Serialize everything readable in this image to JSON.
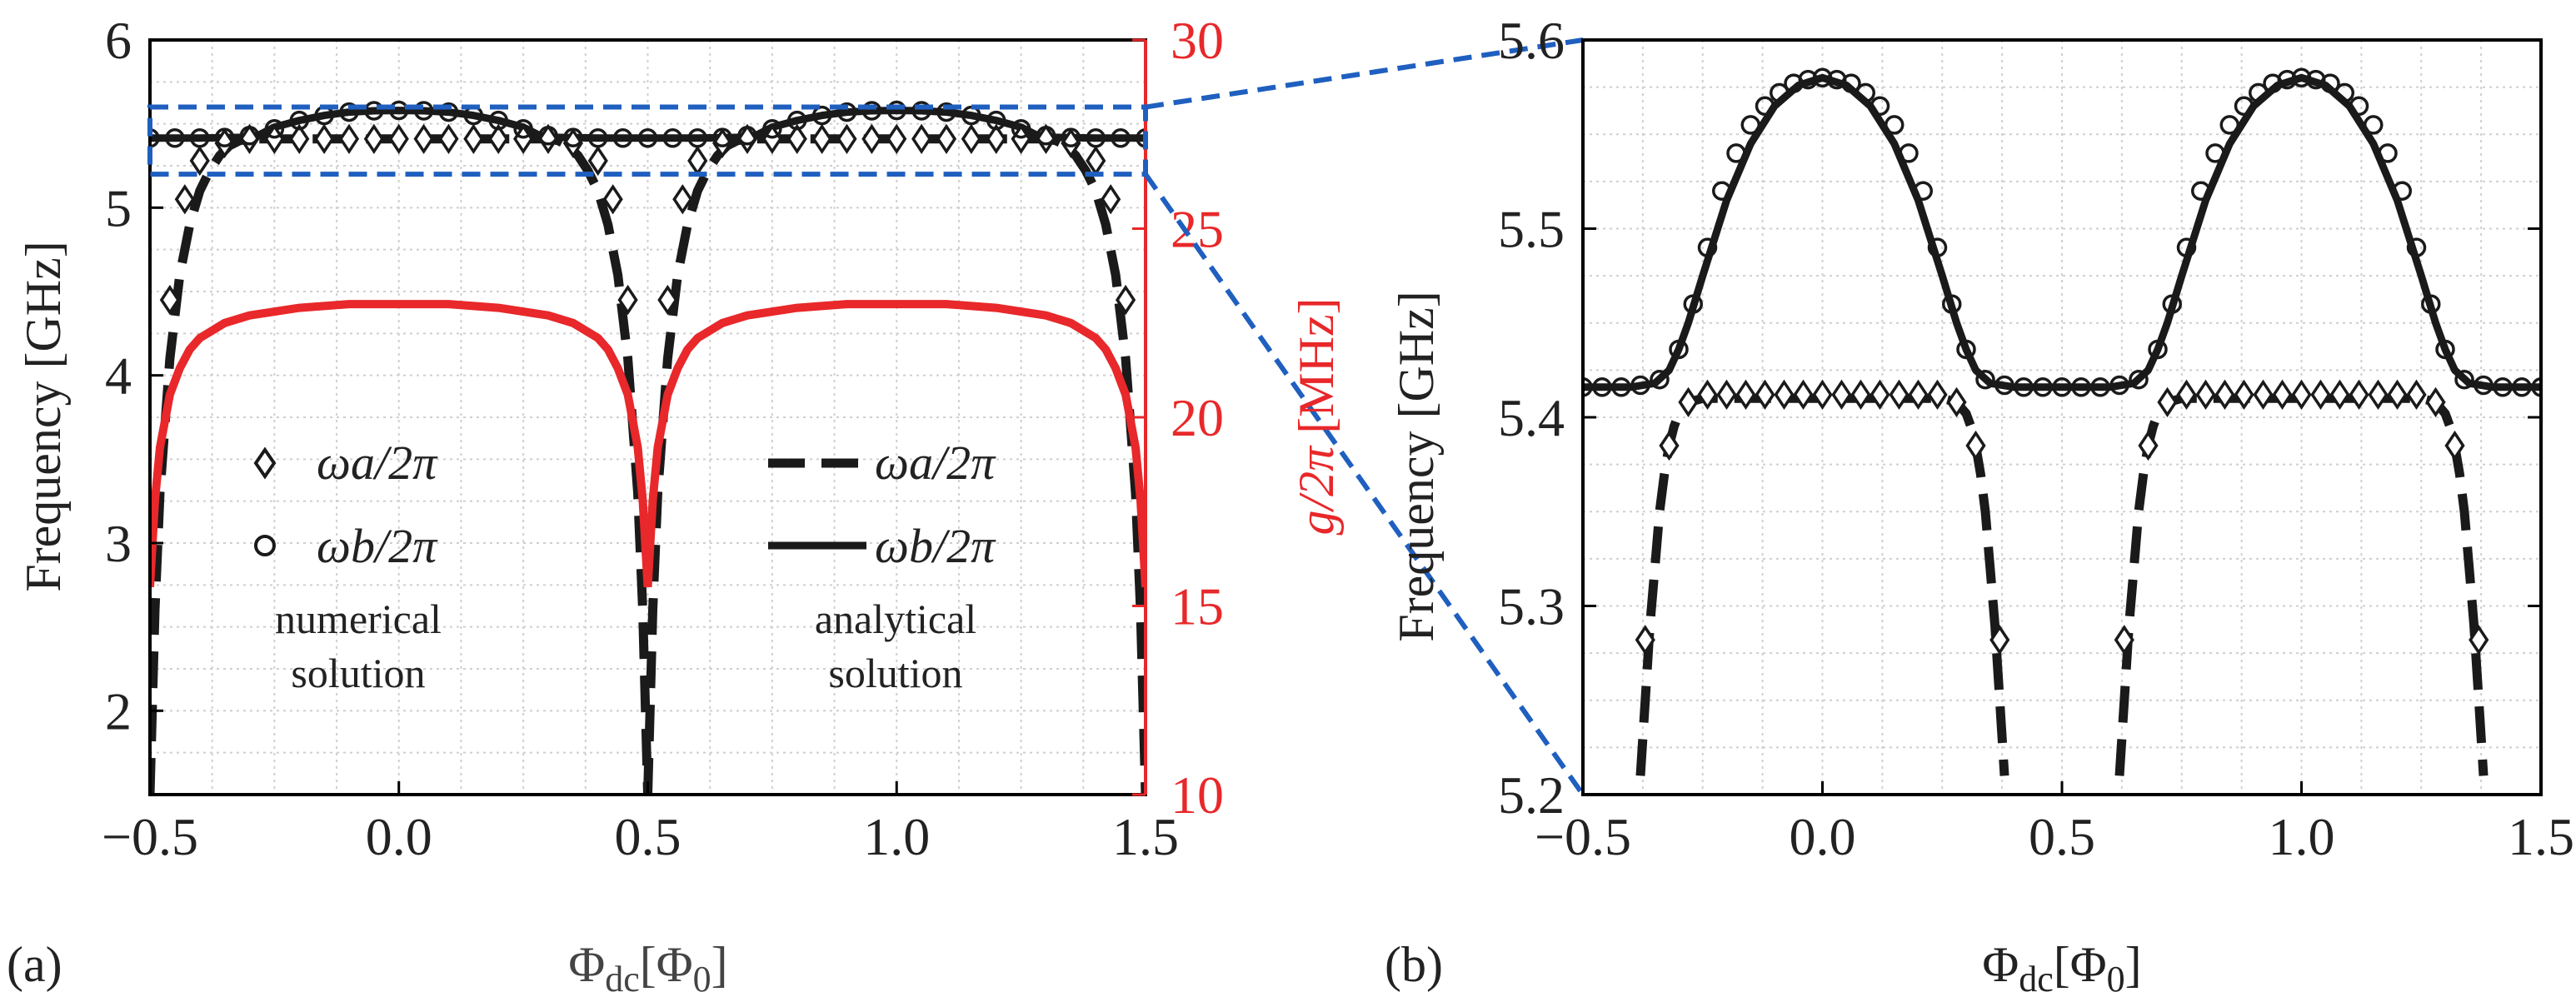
{
  "panel_a": {
    "tag": "(a)",
    "xlabel": "Φdc[Φ0]",
    "xlabel_main": "Φ",
    "xlabel_sub": "dc",
    "xlabel_rest": "[Φ",
    "xlabel_rest_sub": "0",
    "xlabel_close": "]",
    "ylabel": "Frequency [GHz]",
    "y2label": "g/2π [MHz]",
    "y2label_var": "g/2π",
    "y2label_unit": " [MHz]",
    "legend_left": {
      "wa": "ωa/2π",
      "wb": "ωb/2π",
      "note1": "numerical",
      "note2": "solution"
    },
    "legend_right": {
      "wa": "ωa/2π",
      "wb": "ωb/2π",
      "note1": "analytical",
      "note2": "solution"
    }
  },
  "panel_b": {
    "tag": "(b)",
    "xlabel": "Φdc[Φ0]",
    "ylabel": "Frequency [GHz]"
  },
  "colors": {
    "accent": "#e8282a",
    "zoom_box": "#1f5fbf",
    "curve": "#1a1a1a",
    "grid": "#cfcfcf"
  },
  "chart_data": [
    {
      "type": "line",
      "title": "",
      "xlabel": "Φdc[Φ0]",
      "ylabel": "Frequency [GHz]",
      "y2label": "g/2π [MHz]",
      "xlim": [
        -0.5,
        1.5
      ],
      "ylim": [
        1.5,
        6
      ],
      "y2lim": [
        10,
        30
      ],
      "xticks": [
        "−0.5",
        "0.0",
        "0.5",
        "1.0",
        "1.5"
      ],
      "yticks": [
        "2",
        "3",
        "4",
        "5",
        "6"
      ],
      "y2ticks": [
        "10",
        "15",
        "20",
        "25",
        "30"
      ],
      "zoom_region": {
        "x": [
          -0.5,
          1.5
        ],
        "y": [
          5.2,
          5.6
        ]
      },
      "series": [
        {
          "name": "ωa/2π analytical",
          "style": "dashed",
          "x": [
            -0.5,
            -0.49,
            -0.48,
            -0.46,
            -0.44,
            -0.42,
            -0.4,
            -0.38,
            -0.36,
            -0.34,
            -0.32,
            -0.3,
            -0.25,
            -0.2,
            -0.1,
            0,
            0.1,
            0.2,
            0.25,
            0.3,
            0.32,
            0.34,
            0.36,
            0.38,
            0.4,
            0.42,
            0.44,
            0.46,
            0.48,
            0.49,
            0.5
          ],
          "y": [
            1.5,
            2.6,
            3.3,
            4.1,
            4.6,
            4.9,
            5.1,
            5.22,
            5.31,
            5.37,
            5.4,
            5.41,
            5.41,
            5.41,
            5.41,
            5.41,
            5.41,
            5.41,
            5.41,
            5.41,
            5.4,
            5.37,
            5.31,
            5.22,
            5.1,
            4.9,
            4.6,
            4.1,
            3.3,
            2.6,
            1.5
          ]
        },
        {
          "name": "ωb/2π analytical",
          "style": "solid",
          "x": [
            -0.5,
            -0.4,
            -0.3,
            -0.28,
            -0.25,
            -0.2,
            -0.15,
            -0.1,
            -0.05,
            0,
            0.05,
            0.1,
            0.15,
            0.2,
            0.25,
            0.28,
            0.3,
            0.4,
            0.5
          ],
          "y": [
            5.415,
            5.415,
            5.42,
            5.435,
            5.48,
            5.52,
            5.55,
            5.57,
            5.578,
            5.58,
            5.578,
            5.57,
            5.55,
            5.52,
            5.48,
            5.435,
            5.42,
            5.415,
            5.415
          ]
        },
        {
          "name": "g/2π",
          "axis": "right",
          "unit": "MHz",
          "x": [
            -0.5,
            -0.49,
            -0.48,
            -0.46,
            -0.44,
            -0.42,
            -0.4,
            -0.35,
            -0.3,
            -0.2,
            -0.1,
            0,
            0.1,
            0.2,
            0.3,
            0.35,
            0.4,
            0.42,
            0.44,
            0.46,
            0.48,
            0.49,
            0.5
          ],
          "y": [
            15.5,
            17.8,
            19.2,
            20.6,
            21.3,
            21.8,
            22.1,
            22.5,
            22.7,
            22.9,
            23.0,
            23.0,
            23.0,
            22.9,
            22.7,
            22.5,
            22.1,
            21.8,
            21.3,
            20.6,
            19.2,
            17.8,
            15.5
          ]
        },
        {
          "name": "ωa/2π numerical",
          "marker": "diamond",
          "x": [
            -0.46,
            -0.43,
            -0.4,
            -0.35,
            -0.3,
            -0.25,
            -0.2,
            -0.15,
            -0.1,
            -0.05,
            0,
            0.05,
            0.1,
            0.15,
            0.2,
            0.25,
            0.3,
            0.35,
            0.4,
            0.43,
            0.46
          ],
          "y": [
            4.45,
            5.05,
            5.28,
            5.385,
            5.41,
            5.41,
            5.41,
            5.41,
            5.41,
            5.41,
            5.41,
            5.41,
            5.41,
            5.41,
            5.41,
            5.41,
            5.41,
            5.385,
            5.28,
            5.05,
            4.45
          ]
        },
        {
          "name": "ωb/2π numerical",
          "marker": "circle",
          "x": [
            -0.5,
            -0.45,
            -0.4,
            -0.35,
            -0.3,
            -0.25,
            -0.2,
            -0.15,
            -0.1,
            -0.05,
            0,
            0.05,
            0.1,
            0.15,
            0.2,
            0.25,
            0.3,
            0.35,
            0.4,
            0.45,
            0.5
          ],
          "y": [
            5.415,
            5.415,
            5.415,
            5.418,
            5.43,
            5.47,
            5.52,
            5.55,
            5.57,
            5.578,
            5.58,
            5.578,
            5.57,
            5.55,
            5.52,
            5.47,
            5.43,
            5.418,
            5.415,
            5.415,
            5.415
          ]
        }
      ],
      "legend": [
        "ωa/2π",
        "ωb/2π",
        "numerical solution",
        "ωa/2π",
        "ωb/2π",
        "analytical solution"
      ]
    },
    {
      "type": "line",
      "title": "",
      "xlabel": "Φdc[Φ0]",
      "ylabel": "Frequency [GHz]",
      "xlim": [
        -0.5,
        1.5
      ],
      "ylim": [
        5.2,
        5.6
      ],
      "xticks": [
        "−0.5",
        "0.0",
        "0.5",
        "1.0",
        "1.5"
      ],
      "yticks": [
        "5.2",
        "5.3",
        "5.4",
        "5.5",
        "5.6"
      ],
      "series": [
        {
          "name": "ωa/2π analytical",
          "style": "dashed",
          "x": [
            -0.38,
            -0.37,
            -0.36,
            -0.35,
            -0.34,
            -0.33,
            -0.32,
            -0.31,
            -0.3,
            -0.28,
            -0.25,
            -0.2,
            -0.1,
            0,
            0.1,
            0.2,
            0.25,
            0.28,
            0.3,
            0.31,
            0.32,
            0.33,
            0.34,
            0.35,
            0.36,
            0.37,
            0.38
          ],
          "y": [
            5.21,
            5.25,
            5.29,
            5.32,
            5.35,
            5.37,
            5.385,
            5.395,
            5.402,
            5.408,
            5.41,
            5.41,
            5.41,
            5.41,
            5.41,
            5.41,
            5.41,
            5.408,
            5.402,
            5.395,
            5.385,
            5.37,
            5.35,
            5.32,
            5.29,
            5.25,
            5.21
          ]
        },
        {
          "name": "ωb/2π analytical",
          "style": "solid",
          "x": [
            -0.5,
            -0.4,
            -0.35,
            -0.32,
            -0.3,
            -0.28,
            -0.25,
            -0.2,
            -0.15,
            -0.1,
            -0.05,
            0,
            0.05,
            0.1,
            0.15,
            0.2,
            0.25,
            0.28,
            0.3,
            0.32,
            0.35,
            0.4,
            0.5
          ],
          "y": [
            5.416,
            5.416,
            5.418,
            5.425,
            5.436,
            5.45,
            5.475,
            5.515,
            5.545,
            5.565,
            5.576,
            5.58,
            5.576,
            5.565,
            5.545,
            5.515,
            5.475,
            5.45,
            5.436,
            5.425,
            5.418,
            5.416,
            5.416
          ]
        },
        {
          "name": "ωa/2π numerical",
          "marker": "diamond",
          "x": [
            -0.37,
            -0.32,
            -0.28,
            -0.24,
            -0.2,
            -0.16,
            -0.12,
            -0.08,
            -0.04,
            0,
            0.04,
            0.08,
            0.12,
            0.16,
            0.2,
            0.24,
            0.28,
            0.32,
            0.37
          ],
          "y": [
            5.282,
            5.385,
            5.408,
            5.412,
            5.412,
            5.412,
            5.412,
            5.412,
            5.412,
            5.412,
            5.412,
            5.412,
            5.412,
            5.412,
            5.412,
            5.412,
            5.408,
            5.385,
            5.282
          ]
        },
        {
          "name": "ωb/2π numerical",
          "marker": "circle",
          "x": [
            -0.5,
            -0.46,
            -0.42,
            -0.38,
            -0.34,
            -0.3,
            -0.27,
            -0.24,
            -0.21,
            -0.18,
            -0.15,
            -0.12,
            -0.09,
            -0.06,
            -0.03,
            0,
            0.03,
            0.06,
            0.09,
            0.12,
            0.15,
            0.18,
            0.21,
            0.24,
            0.27,
            0.3,
            0.34,
            0.38,
            0.42,
            0.46,
            0.5
          ],
          "y": [
            5.416,
            5.416,
            5.416,
            5.417,
            5.42,
            5.436,
            5.46,
            5.49,
            5.52,
            5.54,
            5.555,
            5.565,
            5.572,
            5.577,
            5.579,
            5.58,
            5.579,
            5.577,
            5.572,
            5.565,
            5.555,
            5.54,
            5.52,
            5.49,
            5.46,
            5.436,
            5.42,
            5.417,
            5.416,
            5.416,
            5.416
          ]
        }
      ]
    }
  ]
}
